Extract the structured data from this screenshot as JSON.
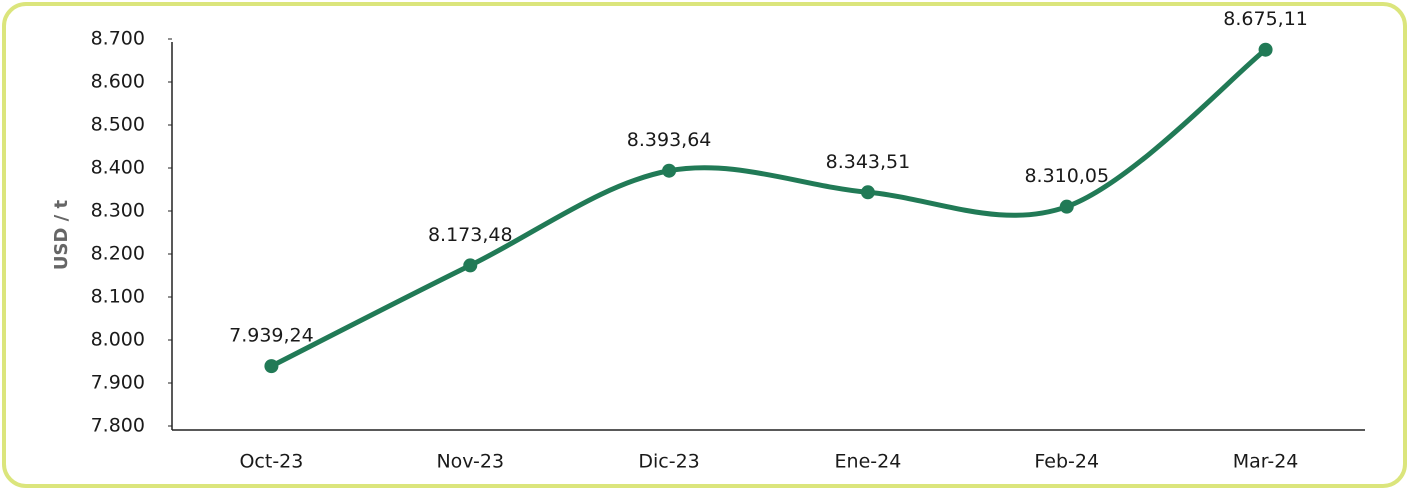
{
  "chart_data": {
    "type": "line",
    "y_label": "USD / t",
    "categories": [
      "Oct-23",
      "Nov-23",
      "Dic-23",
      "Ene-24",
      "Feb-24",
      "Mar-24"
    ],
    "series": [
      {
        "name": "USD / t",
        "color": "#217a56",
        "values": [
          7939.24,
          8173.48,
          8393.64,
          8343.51,
          8310.05,
          8675.11
        ],
        "value_labels": [
          "7.939,24",
          "8.173,48",
          "8.393,64",
          "8.343,51",
          "8.310,05",
          "8.675,11"
        ]
      }
    ],
    "ylim": [
      7800,
      8700
    ],
    "yticks": [
      {
        "value": 7800,
        "label": "7.800"
      },
      {
        "value": 7900,
        "label": "7.900"
      },
      {
        "value": 8000,
        "label": "8.000"
      },
      {
        "value": 8100,
        "label": "8.100"
      },
      {
        "value": 8200,
        "label": "8.200"
      },
      {
        "value": 8300,
        "label": "8.300"
      },
      {
        "value": 8400,
        "label": "8.400"
      },
      {
        "value": 8500,
        "label": "8.500"
      },
      {
        "value": 8600,
        "label": "8.600"
      },
      {
        "value": 8700,
        "label": "8.700"
      }
    ],
    "smooth": true,
    "grid": false
  }
}
